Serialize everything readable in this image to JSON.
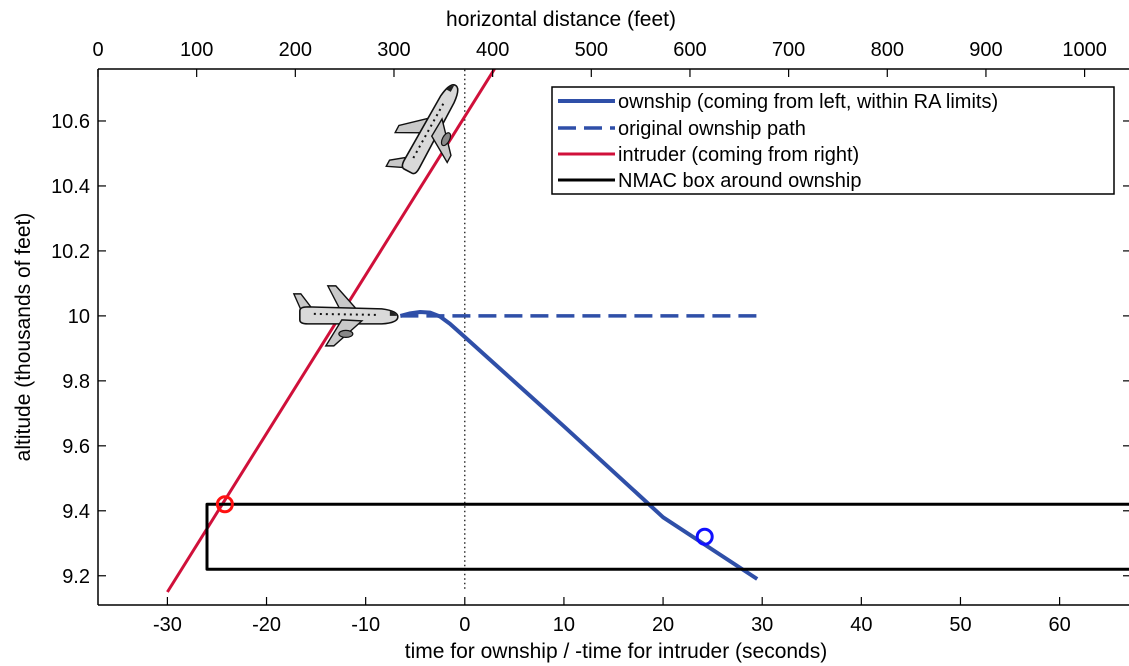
{
  "chart_data": {
    "type": "line",
    "title": "",
    "xlabel": "time for ownship / -time for intruder (seconds)",
    "ylabel": "altitude (thousands of feet)",
    "x2label": "horizontal distance (feet)",
    "xlim": [
      -37,
      67
    ],
    "ylim": [
      9.11,
      10.76
    ],
    "x2lim": [
      0,
      1045
    ],
    "xticks": [
      -30,
      -20,
      -10,
      0,
      10,
      20,
      30,
      40,
      50,
      60
    ],
    "xtick_labels": [
      "-30",
      "-20",
      "-10",
      "0",
      "10",
      "20",
      "30",
      "40",
      "50",
      "60"
    ],
    "yticks": [
      9.2,
      9.4,
      9.6,
      9.8,
      10.0,
      10.2,
      10.4,
      10.6
    ],
    "ytick_labels": [
      "9.2",
      "9.4",
      "9.6",
      "9.8",
      "10",
      "10.2",
      "10.4",
      "10.6"
    ],
    "x2ticks": [
      0,
      100,
      200,
      300,
      400,
      500,
      600,
      700,
      800,
      900,
      1000
    ],
    "x2tick_labels": [
      "0",
      "100",
      "200",
      "300",
      "400",
      "500",
      "600",
      "700",
      "800",
      "900",
      "1000"
    ],
    "grid": false,
    "legend_position": "top-right",
    "series": [
      {
        "name": "ownship (coming from left, within RA limits)",
        "style": "solid",
        "color": "#2f4fa8",
        "x": [
          -6.5,
          -5.5,
          -4.5,
          -3.5,
          -2.5,
          -1.5,
          0,
          10,
          20,
          29.5
        ],
        "y": [
          10.0,
          10.008,
          10.012,
          10.01,
          9.998,
          9.976,
          9.935,
          9.66,
          9.38,
          9.19
        ]
      },
      {
        "name": "original ownship path",
        "style": "dashed",
        "color": "#2f4fa8",
        "x": [
          -6.5,
          29.5
        ],
        "y": [
          10.0,
          10.0
        ]
      },
      {
        "name": "intruder (coming from right)",
        "style": "solid",
        "color": "#d0103a",
        "x": [
          -30,
          3
        ],
        "y": [
          9.15,
          10.76
        ]
      },
      {
        "name": "NMAC box around ownship",
        "style": "solid",
        "color": "#000000",
        "x": [
          67,
          -26,
          -26,
          67
        ],
        "y": [
          9.42,
          9.42,
          9.22,
          9.22
        ]
      }
    ],
    "markers": [
      {
        "x": -24.2,
        "y": 9.42,
        "color": "#ff1010"
      },
      {
        "x": 24.2,
        "y": 9.32,
        "color": "#1010ff"
      }
    ],
    "vline": {
      "x": 0,
      "y_from": 9.16,
      "y_to": 10.76,
      "style": "dotted"
    },
    "aircraft_icons": [
      {
        "x": -3.5,
        "y": 10.57,
        "heading": "climbing"
      },
      {
        "x": -12,
        "y": 10.0,
        "heading": "level"
      }
    ],
    "colors": {
      "ownship": "#2f4fa8",
      "intruder": "#d0103a",
      "nmac": "#000000",
      "marker_intruder": "#ff1010",
      "marker_ownship": "#1010ff"
    }
  }
}
